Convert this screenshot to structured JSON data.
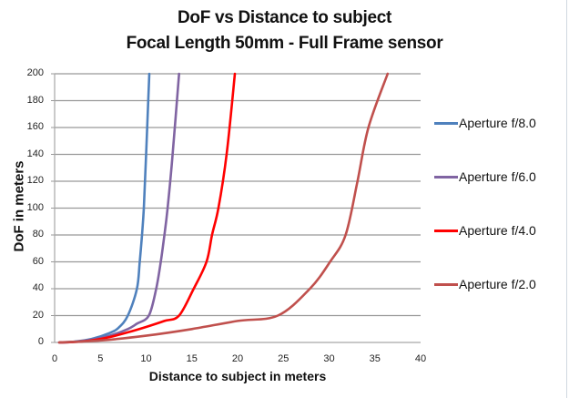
{
  "chart_data": {
    "type": "line",
    "title": "DoF vs Distance to subject",
    "subtitle": "Focal Length 50mm - Full Frame sensor",
    "xlabel": "Distance to subject in meters",
    "ylabel": "DoF in meters",
    "xlim": [
      0,
      40
    ],
    "ylim": [
      0,
      200
    ],
    "x_ticks": [
      "0",
      "5",
      "10",
      "15",
      "20",
      "25",
      "30",
      "35",
      "40"
    ],
    "y_ticks": [
      "0",
      "20",
      "40",
      "60",
      "80",
      "100",
      "120",
      "140",
      "160",
      "180",
      "200"
    ],
    "grid": {
      "horizontal": true,
      "vertical": false
    },
    "legend_position": "right",
    "series": [
      {
        "name": "Aperture f/8.0",
        "color": "#4f81bd",
        "points": [
          [
            0.5,
            0
          ],
          [
            2,
            0.5
          ],
          [
            4,
            2.5
          ],
          [
            6,
            7
          ],
          [
            7,
            11
          ],
          [
            8,
            20
          ],
          [
            9,
            40
          ],
          [
            9.3,
            60
          ],
          [
            9.55,
            80
          ],
          [
            9.75,
            100
          ],
          [
            10.0,
            140
          ],
          [
            10.35,
            200
          ]
        ]
      },
      {
        "name": "Aperture f/6.0",
        "color": "#8064a2",
        "points": [
          [
            0.5,
            0
          ],
          [
            2,
            0.4
          ],
          [
            4,
            2
          ],
          [
            6,
            5
          ],
          [
            8,
            10
          ],
          [
            9,
            14
          ],
          [
            10.3,
            20
          ],
          [
            11.1,
            40
          ],
          [
            11.6,
            60
          ],
          [
            12.0,
            80
          ],
          [
            12.35,
            100
          ],
          [
            12.9,
            140
          ],
          [
            13.6,
            200
          ]
        ]
      },
      {
        "name": "Aperture f/4.0",
        "color": "#ff0000",
        "points": [
          [
            0.5,
            0
          ],
          [
            2,
            0.3
          ],
          [
            4,
            1.5
          ],
          [
            6,
            4
          ],
          [
            8,
            7.5
          ],
          [
            10,
            11.5
          ],
          [
            12,
            16
          ],
          [
            13.6,
            20
          ],
          [
            15.2,
            40
          ],
          [
            16.6,
            60
          ],
          [
            17.2,
            80
          ],
          [
            17.9,
            100
          ],
          [
            18.8,
            140
          ],
          [
            19.7,
            200
          ]
        ]
      },
      {
        "name": "Aperture f/2.0",
        "color": "#c0504d",
        "points": [
          [
            0.5,
            0
          ],
          [
            5,
            1.5
          ],
          [
            10,
            5
          ],
          [
            15,
            10
          ],
          [
            20,
            16
          ],
          [
            24.4,
            20
          ],
          [
            27.9,
            40
          ],
          [
            30.1,
            60
          ],
          [
            31.8,
            80
          ],
          [
            33.1,
            120
          ],
          [
            34.3,
            160
          ],
          [
            36.4,
            200
          ]
        ]
      }
    ]
  },
  "page": {
    "title_line1": "DoF vs Distance to subject",
    "title_line2": "Focal Length 50mm - Full Frame sensor"
  }
}
